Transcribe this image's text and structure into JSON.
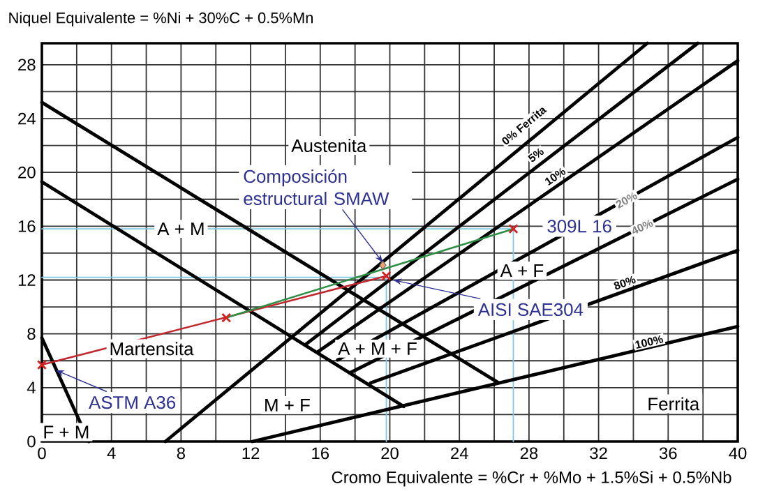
{
  "chart_data": {
    "type": "line",
    "xlabel": "Cromo Equivalente = %Cr + %Mo + 1.5%Si + 0.5%Nb",
    "ylabel": "Niquel Equivalente = %Ni + 30%C + 0.5%Mn",
    "xlim": [
      0,
      40
    ],
    "ylim": [
      0,
      29.6
    ],
    "xticks": [
      0,
      4,
      8,
      12,
      16,
      20,
      24,
      28,
      32,
      36,
      40
    ],
    "yticks": [
      0,
      4,
      8,
      12,
      16,
      20,
      24,
      28
    ],
    "grid": true,
    "marker": "none",
    "series": [
      {
        "color": "#7ec8e3",
        "x": [
          0,
          27.1
        ],
        "values": [
          15.8,
          15.8
        ]
      },
      {
        "color": "#7ec8e3",
        "x": [
          27.1,
          27.1
        ],
        "values": [
          15.8,
          0
        ]
      },
      {
        "color": "#7ec8e3",
        "x": [
          0,
          19.8
        ],
        "values": [
          12.2,
          12.2
        ]
      },
      {
        "color": "#7ec8e3",
        "x": [
          19.8,
          19.8
        ],
        "values": [
          12.2,
          0
        ]
      },
      {
        "color": "#000000",
        "x": [
          0,
          26.2
        ],
        "values": [
          25.2,
          4.4
        ]
      },
      {
        "color": "#000000",
        "x": [
          0,
          20.8
        ],
        "values": [
          19.3,
          2.6
        ]
      },
      {
        "color": "#000000",
        "x": [
          0,
          2.7
        ],
        "values": [
          7.7,
          0
        ]
      },
      {
        "color": "#000000",
        "x": [
          7.1,
          34.8
        ],
        "values": [
          0,
          29.6
        ]
      },
      {
        "color": "#000000",
        "x": [
          15.2,
          37.7
        ],
        "values": [
          7.25,
          29.6
        ]
      },
      {
        "color": "#000000",
        "x": [
          15.9,
          40
        ],
        "values": [
          6.7,
          28.3
        ]
      },
      {
        "color": "#000000",
        "x": [
          17.0,
          40
        ],
        "values": [
          6.06,
          22.6
        ]
      },
      {
        "color": "#000000",
        "x": [
          17.7,
          40
        ],
        "values": [
          5.1,
          19.5
        ]
      },
      {
        "color": "#000000",
        "x": [
          18.9,
          40
        ],
        "values": [
          4.35,
          14.2
        ]
      },
      {
        "color": "#000000",
        "x": [
          12.1,
          40
        ],
        "values": [
          0,
          8.55
        ]
      },
      {
        "color": "#c0282d",
        "x": [
          0,
          19.8
        ],
        "values": [
          5.7,
          12.3
        ]
      },
      {
        "color": "#2f8f46",
        "x": [
          10.6,
          27.1
        ],
        "values": [
          9.2,
          15.8
        ]
      },
      {
        "type": "scatter",
        "color": "#d42020",
        "marker": "cross",
        "x": [
          0,
          10.6,
          19.8,
          27.1
        ],
        "values": [
          5.7,
          9.2,
          12.3,
          15.8
        ]
      },
      {
        "type": "scatter",
        "color": "#f2a36b",
        "marker": "diamond",
        "x": [
          19.6
        ],
        "values": [
          13.1
        ]
      }
    ],
    "annotations": [
      "Austenita",
      "A + M",
      "Martensita",
      "M + F",
      "F + M",
      "A + F",
      "A + M + F",
      "Ferrita",
      "0% Ferrita",
      "5%",
      "10%",
      "20%",
      "40%",
      "80%",
      "100%",
      {
        "text": "Composición estructural SMAW",
        "x": 19.6,
        "y": 13.3
      },
      {
        "text": "309L 16",
        "x": 27.1,
        "y": 15.8
      },
      {
        "text": "AISI SAE304",
        "x": 20.2,
        "y": 12.0
      },
      {
        "text": "ASTM A36",
        "x": 0.8,
        "y": 5.3
      }
    ]
  }
}
